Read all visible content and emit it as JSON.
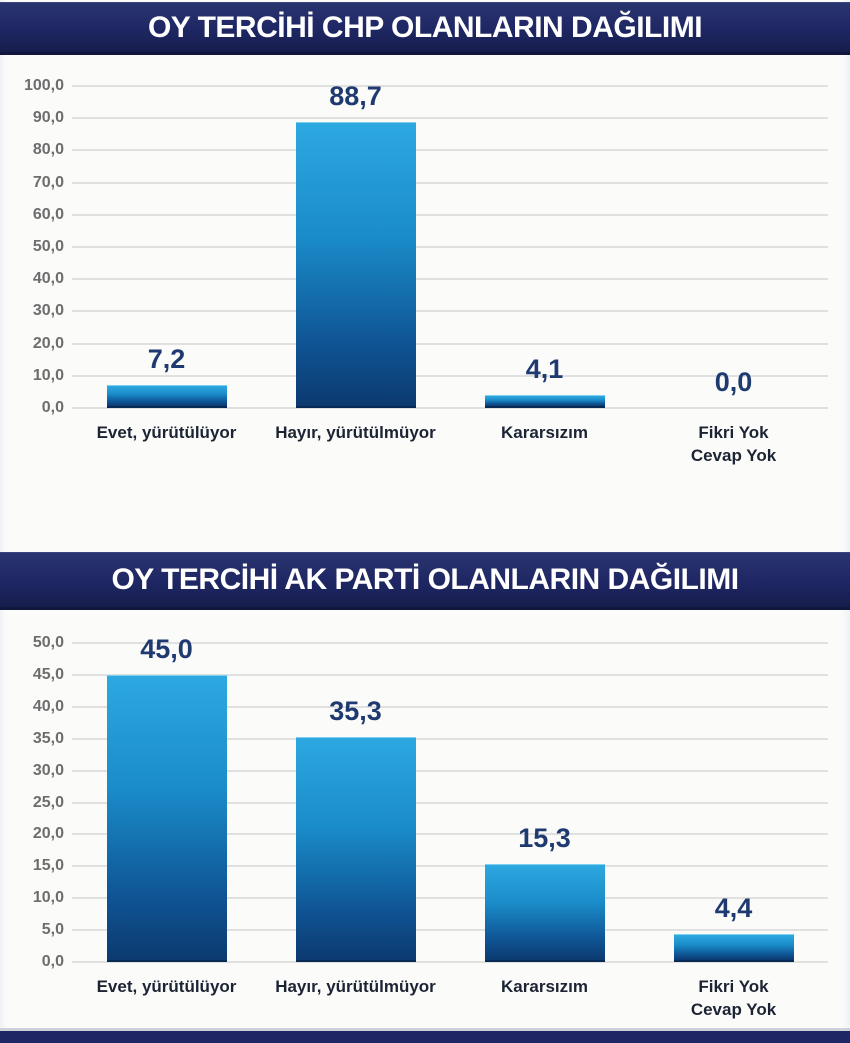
{
  "colors": {
    "title_bar_bg": "#1e2763",
    "title_bar_top": "#2a346f",
    "title_text": "#ffffff",
    "bar_gradient_top": "#2da8e0",
    "bar_gradient_bottom": "#0c3a70",
    "value_label": "#1f3a70",
    "category_label": "#1c2434",
    "axis_tick_label": "#6d6d6d",
    "gridline": "#e0e0e0"
  },
  "chart_data": [
    {
      "type": "bar",
      "title": "OY TERCİHİ CHP OLANLARIN DAĞILIMI",
      "categories": [
        "Evet, yürütülüyor",
        "Hayır, yürütülmüyor",
        "Kararsızım",
        "Fikri Yok\nCevap Yok"
      ],
      "values": [
        7.2,
        88.7,
        4.1,
        0.0
      ],
      "value_labels": [
        "7,2",
        "88,7",
        "4,1",
        "0,0"
      ],
      "xlabel": "",
      "ylabel": "",
      "ylim": [
        0,
        100
      ],
      "ytick_step": 10,
      "ytick_labels_top_to_bottom": [
        "100,0",
        "90,0",
        "80,0",
        "70,0",
        "60,0",
        "50,0",
        "40,0",
        "30,0",
        "20,0",
        "10,0",
        "0,0"
      ],
      "grid": true,
      "legend": false
    },
    {
      "type": "bar",
      "title": "OY TERCİHİ AK PARTİ OLANLARIN DAĞILIMI",
      "categories": [
        "Evet, yürütülüyor",
        "Hayır, yürütülmüyor",
        "Kararsızım",
        "Fikri Yok\nCevap Yok"
      ],
      "values": [
        45.0,
        35.3,
        15.3,
        4.4
      ],
      "value_labels": [
        "45,0",
        "35,3",
        "15,3",
        "4,4"
      ],
      "xlabel": "",
      "ylabel": "",
      "ylim": [
        0,
        50
      ],
      "ytick_step": 5,
      "ytick_labels_top_to_bottom": [
        "50,0",
        "45,0",
        "40,0",
        "35,0",
        "30,0",
        "25,0",
        "20,0",
        "15,0",
        "10,0",
        "5,0",
        "0,0"
      ],
      "grid": true,
      "legend": false
    }
  ]
}
